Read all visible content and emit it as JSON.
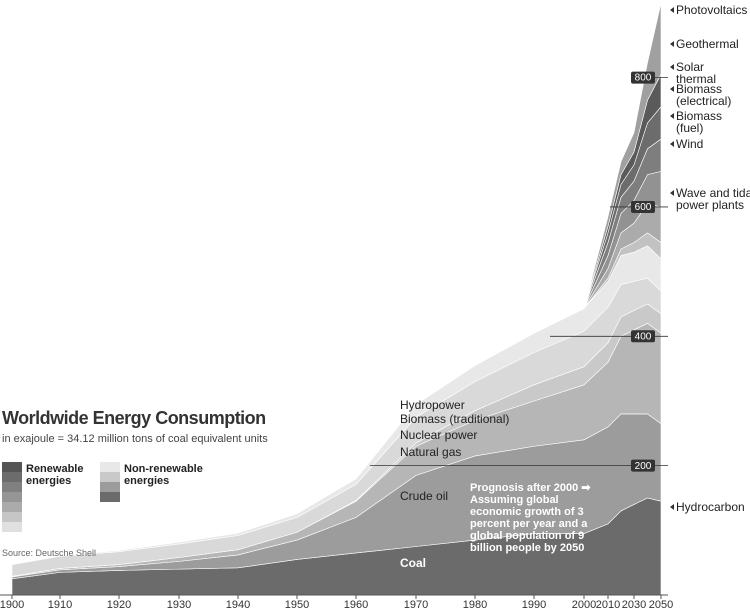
{
  "chart_data": {
    "type": "stacked_area",
    "title": "Worldwide Energy Consumption",
    "subtitle": "in exajoule = 34.12 million tons of coal equivalent units",
    "source": "Source: Deutsche Shell",
    "legend": [
      "Renewable energies",
      "Non-renewable energies"
    ],
    "prognosis": "Prognosis after 2000 ➡",
    "prognosis_note": "Assuming global economic growth of 3 percent per year and a global population of 9 billion people by 2050",
    "annotation": "Hydrocarbon",
    "x": [
      1900,
      1910,
      1920,
      1930,
      1940,
      1950,
      1960,
      1970,
      1980,
      1990,
      2000,
      2010,
      2020,
      2030,
      2040,
      2050
    ],
    "xticks": [
      1900,
      1910,
      1920,
      1930,
      1940,
      1950,
      1960,
      1970,
      1980,
      1990,
      2000,
      2010,
      2030,
      2050
    ],
    "ylim": [
      0,
      920
    ],
    "yticks": [
      200,
      400,
      600,
      800
    ],
    "series": [
      {
        "name": "Coal",
        "color": "#6b6b6b",
        "values": [
          25,
          35,
          38,
          40,
          42,
          55,
          65,
          75,
          85,
          95,
          95,
          110,
          130,
          140,
          150,
          145
        ]
      },
      {
        "name": "Crude oil",
        "color": "#9c9c9c",
        "values": [
          3,
          4,
          6,
          12,
          20,
          30,
          55,
          110,
          130,
          135,
          145,
          150,
          150,
          140,
          130,
          120
        ]
      },
      {
        "name": "Natural gas",
        "color": "#b6b6b6",
        "values": [
          1,
          2,
          3,
          6,
          8,
          12,
          25,
          45,
          55,
          70,
          85,
          100,
          120,
          130,
          140,
          140
        ]
      },
      {
        "name": "Nuclear power",
        "color": "#c9c9c9",
        "values": [
          0,
          0,
          0,
          0,
          0,
          0,
          1,
          5,
          15,
          25,
          28,
          30,
          30,
          30,
          30,
          30
        ]
      },
      {
        "name": "Biomass (traditional)",
        "color": "#d9d9d9",
        "values": [
          18,
          19,
          20,
          21,
          22,
          23,
          25,
          40,
          45,
          50,
          55,
          55,
          50,
          45,
          40,
          35
        ]
      },
      {
        "name": "Hydropower",
        "color": "#e8e8e8",
        "values": [
          1,
          1,
          2,
          3,
          4,
          6,
          9,
          20,
          25,
          30,
          35,
          40,
          45,
          45,
          50,
          50
        ]
      },
      {
        "name": "Wave and tidal power plants",
        "color": "#c2c2c2",
        "values": [
          0,
          0,
          0,
          0,
          0,
          0,
          0,
          0,
          0,
          0,
          0,
          5,
          10,
          15,
          20,
          25
        ]
      },
      {
        "name": "Wind",
        "color": "#ababab",
        "values": [
          0,
          0,
          0,
          0,
          0,
          0,
          0,
          0,
          0,
          0,
          0,
          15,
          25,
          30,
          45,
          55
        ]
      },
      {
        "name": "Biomass (fuel)",
        "color": "#929292",
        "values": [
          0,
          0,
          0,
          0,
          0,
          0,
          0,
          0,
          0,
          0,
          0,
          20,
          30,
          35,
          45,
          55
        ]
      },
      {
        "name": "Biomass (electrical)",
        "color": "#7e7e7e",
        "values": [
          0,
          0,
          0,
          0,
          0,
          0,
          0,
          0,
          0,
          0,
          0,
          20,
          25,
          30,
          40,
          50
        ]
      },
      {
        "name": "Solar thermal",
        "color": "#6c6c6c",
        "values": [
          0,
          0,
          0,
          0,
          0,
          0,
          0,
          0,
          0,
          0,
          0,
          15,
          20,
          25,
          40,
          50
        ]
      },
      {
        "name": "Geothermal",
        "color": "#5a5a5a",
        "values": [
          0,
          0,
          0,
          0,
          0,
          0,
          0,
          0,
          0,
          0,
          0,
          10,
          15,
          20,
          35,
          50
        ]
      },
      {
        "name": "Photovoltaics",
        "color": "#a0a0a0",
        "values": [
          0,
          0,
          0,
          0,
          0,
          0,
          0,
          0,
          0,
          0,
          0,
          15,
          20,
          30,
          58,
          110
        ]
      }
    ]
  }
}
